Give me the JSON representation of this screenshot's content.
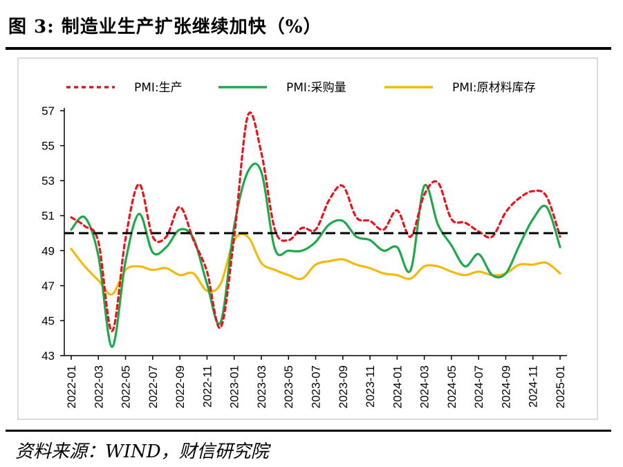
{
  "title": "图 3:  制造业生产扩张继续加快（%）",
  "source": "资料来源：WIND，财信研究院",
  "chart_data": {
    "type": "line",
    "title": "",
    "xlabel": "",
    "ylabel": "",
    "ylim": [
      43,
      57
    ],
    "yticks": [
      "43",
      "45",
      "47",
      "49",
      "51",
      "53",
      "55",
      "57"
    ],
    "x": [
      "2022-01",
      "2022-02",
      "2022-03",
      "2022-04",
      "2022-05",
      "2022-06",
      "2022-07",
      "2022-08",
      "2022-09",
      "2022-10",
      "2022-11",
      "2022-12",
      "2023-01",
      "2023-02",
      "2023-03",
      "2023-04",
      "2023-05",
      "2023-06",
      "2023-07",
      "2023-08",
      "2023-09",
      "2023-10",
      "2023-11",
      "2023-12",
      "2024-01",
      "2024-02",
      "2024-03",
      "2024-04",
      "2024-05",
      "2024-06",
      "2024-07",
      "2024-08",
      "2024-09",
      "2024-10",
      "2024-11",
      "2024-12",
      "2025-01"
    ],
    "xticks": [
      "2022-01",
      "2022-03",
      "2022-05",
      "2022-07",
      "2022-09",
      "2022-11",
      "2023-01",
      "2023-03",
      "2023-05",
      "2023-07",
      "2023-09",
      "2023-11",
      "2024-01",
      "2024-03",
      "2024-05",
      "2024-07",
      "2024-09",
      "2024-11",
      "2025-01"
    ],
    "reference_line": 50,
    "legend_position": "top",
    "series": [
      {
        "name": "PMI:生产",
        "color": "#e8141c",
        "style": "dashed",
        "values": [
          50.9,
          50.4,
          49.5,
          44.4,
          49.7,
          52.8,
          49.8,
          49.8,
          51.5,
          49.6,
          47.8,
          44.6,
          49.8,
          56.7,
          54.6,
          50.2,
          49.6,
          50.3,
          50.2,
          51.9,
          52.7,
          50.9,
          50.7,
          50.2,
          51.3,
          49.8,
          52.2,
          52.9,
          50.8,
          50.6,
          50.1,
          49.8,
          51.2,
          52.0,
          52.4,
          52.1,
          49.8
        ]
      },
      {
        "name": "PMI:采购量",
        "color": "#1ea84a",
        "style": "solid",
        "values": [
          50.2,
          50.9,
          48.7,
          43.5,
          48.4,
          51.1,
          48.9,
          49.2,
          50.2,
          49.7,
          47.1,
          44.9,
          50.4,
          53.5,
          53.5,
          49.1,
          49.0,
          49.0,
          49.5,
          50.5,
          50.7,
          49.8,
          49.6,
          49.0,
          49.2,
          47.9,
          52.7,
          50.5,
          49.3,
          48.1,
          48.8,
          47.6,
          47.7,
          49.3,
          50.8,
          51.5,
          49.2
        ]
      },
      {
        "name": "PMI:原材料库存",
        "color": "#f5b90c",
        "style": "solid",
        "values": [
          49.1,
          48.1,
          47.3,
          46.5,
          47.9,
          48.1,
          47.9,
          48.0,
          47.6,
          47.7,
          46.7,
          47.1,
          49.6,
          49.8,
          48.3,
          47.9,
          47.6,
          47.4,
          48.2,
          48.4,
          48.5,
          48.2,
          48.0,
          47.7,
          47.6,
          47.4,
          48.1,
          48.1,
          47.8,
          47.6,
          47.8,
          47.6,
          47.7,
          48.2,
          48.2,
          48.3,
          47.7
        ]
      }
    ]
  }
}
